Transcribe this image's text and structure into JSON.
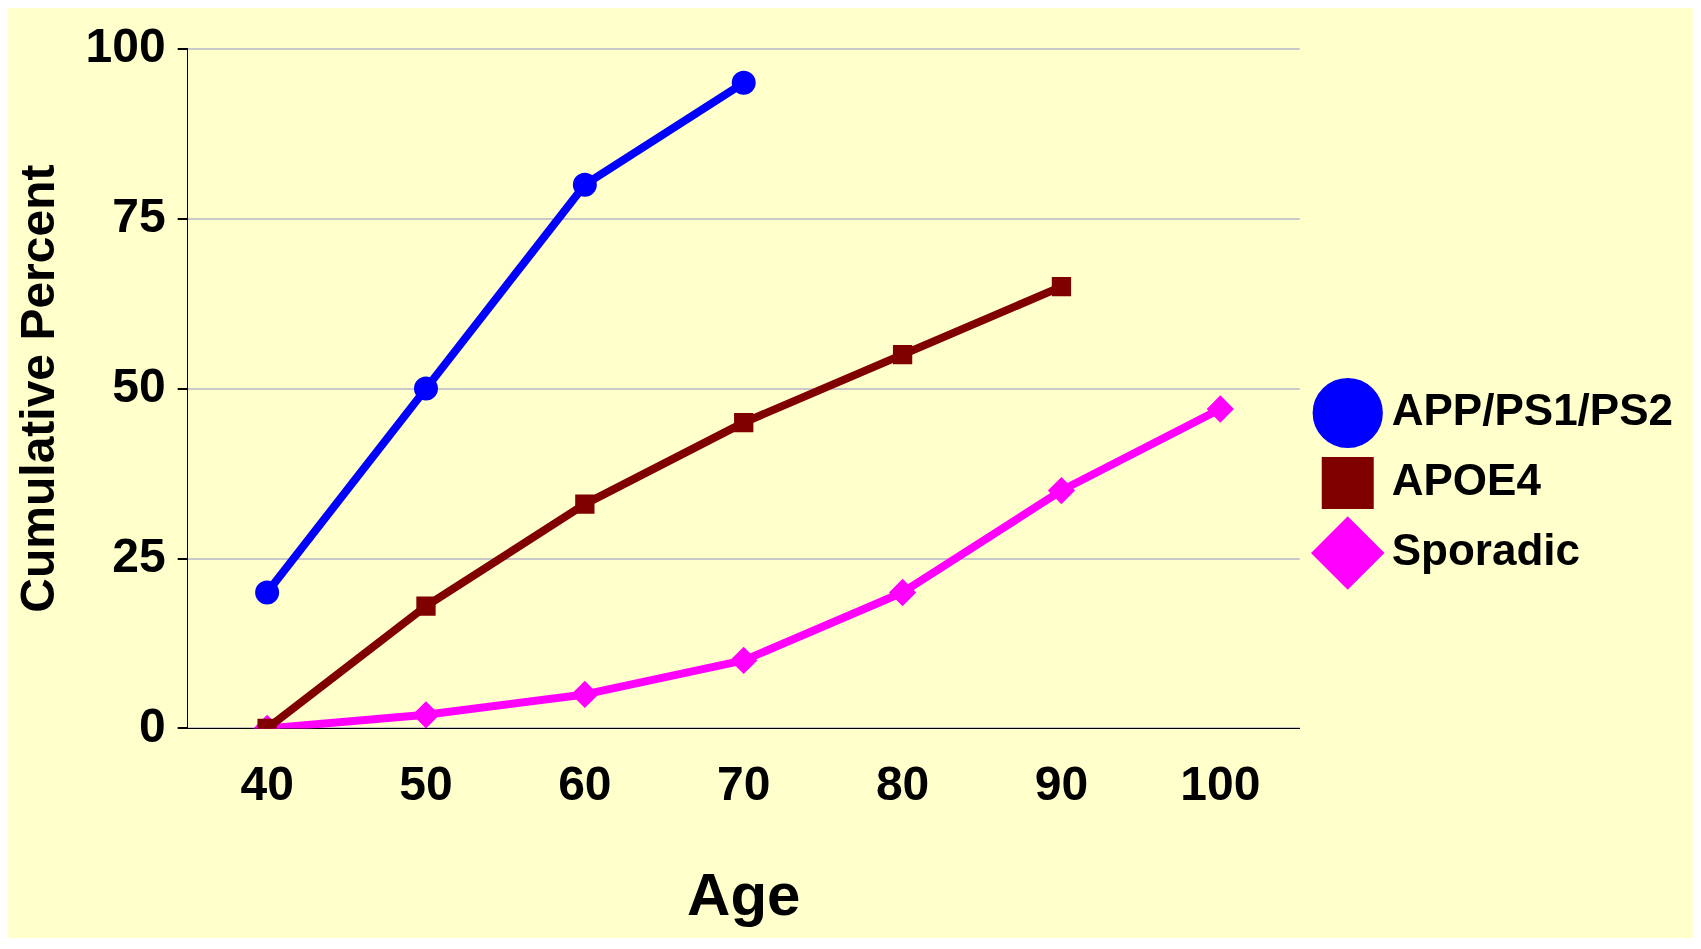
{
  "chart_data": {
    "type": "line",
    "xlabel": "Age",
    "ylabel": "Cumulative Percent",
    "categories": [
      "40",
      "50",
      "60",
      "70",
      "80",
      "90",
      "100"
    ],
    "ylim": [
      0,
      100
    ],
    "yticks": [
      0,
      25,
      50,
      75,
      100
    ],
    "grid": "y",
    "legend": "right",
    "series": [
      {
        "name": "APP/PS1/PS2",
        "color": "#0000ff",
        "marker": "circle",
        "values": [
          20,
          50,
          80,
          95,
          null,
          null,
          null
        ]
      },
      {
        "name": "APOE4",
        "color": "#800000",
        "marker": "square",
        "values": [
          0,
          18,
          33,
          45,
          55,
          65,
          null
        ]
      },
      {
        "name": "Sporadic",
        "color": "#ff00ff",
        "marker": "diamond",
        "values": [
          0,
          2,
          5,
          10,
          20,
          35,
          47
        ]
      }
    ]
  }
}
